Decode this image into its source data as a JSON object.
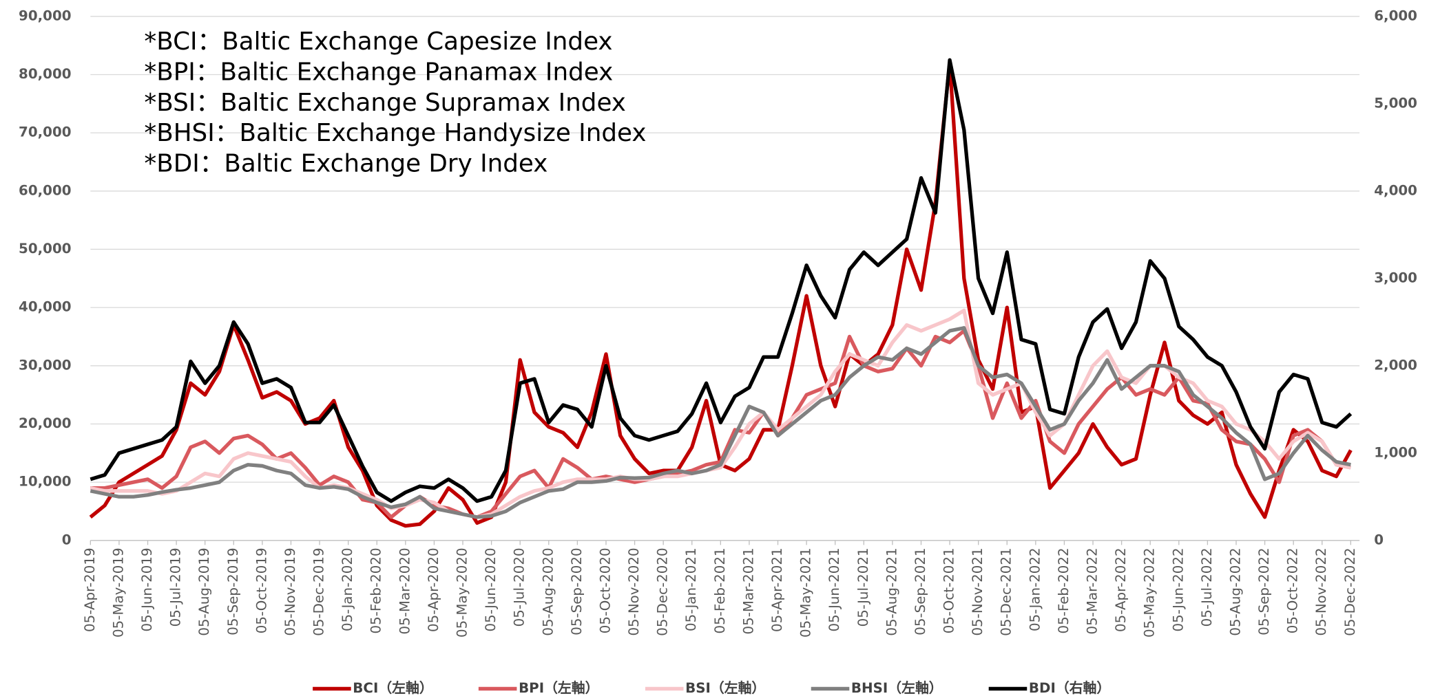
{
  "chart_data": {
    "type": "line",
    "annotations": [
      "*BCI：Baltic Exchange Capesize Index",
      "*BPI：Baltic Exchange Panamax Index",
      "*BSI：Baltic Exchange Supramax Index",
      "*BHSI：Baltic Exchange Handysize Index",
      "*BDI：Baltic Exchange Dry Index"
    ],
    "categories": [
      "05-Apr-2019",
      null,
      "05-May-2019",
      null,
      "05-Jun-2019",
      null,
      "05-Jul-2019",
      null,
      "05-Aug-2019",
      null,
      "05-Sep-2019",
      null,
      "05-Oct-2019",
      null,
      "05-Nov-2019",
      null,
      "05-Dec-2019",
      null,
      "05-Jan-2020",
      null,
      "05-Feb-2020",
      null,
      "05-Mar-2020",
      null,
      "05-Apr-2020",
      null,
      "05-May-2020",
      null,
      "05-Jun-2020",
      null,
      "05-Jul-2020",
      null,
      "05-Aug-2020",
      null,
      "05-Sep-2020",
      null,
      "05-Oct-2020",
      null,
      "05-Nov-2020",
      null,
      "05-Dec-2020",
      null,
      "05-Jan-2021",
      null,
      "05-Feb-2021",
      null,
      "05-Mar-2021",
      null,
      "05-Apr-2021",
      null,
      "05-May-2021",
      null,
      "05-Jun-2021",
      null,
      "05-Jul-2021",
      null,
      "05-Aug-2021",
      null,
      "05-Sep-2021",
      null,
      "05-Oct-2021",
      null,
      "05-Nov-2021",
      null,
      "05-Dec-2021",
      null,
      "05-Jan-2022",
      null,
      "05-Feb-2022",
      null,
      "05-Mar-2022",
      null,
      "05-Apr-2022",
      null,
      "05-May-2022",
      null,
      "05-Jun-2022",
      null,
      "05-Jul-2022",
      null,
      "05-Aug-2022",
      null,
      "05-Sep-2022",
      null,
      "05-Oct-2022",
      null,
      "05-Nov-2022",
      null,
      "05-Dec-2022"
    ],
    "series": [
      {
        "name": "BCI（左軸）",
        "color": "#c00000",
        "values": [
          4000,
          6000,
          10000,
          11500,
          13000,
          14500,
          19000,
          27000,
          25000,
          29000,
          37000,
          31000,
          24500,
          25500,
          24000,
          20000,
          21000,
          24000,
          16000,
          12000,
          6000,
          3500,
          2500,
          2800,
          5000,
          9000,
          7000,
          3000,
          4000,
          10000,
          31000,
          22000,
          19500,
          18500,
          16000,
          22000,
          32000,
          18000,
          14000,
          11500,
          12000,
          12000,
          16000,
          24000,
          13000,
          12000,
          14000,
          19000,
          19000,
          30000,
          42000,
          30000,
          23000,
          32000,
          30000,
          32000,
          37000,
          50000,
          43000,
          58000,
          82000,
          45000,
          31000,
          26000,
          40000,
          22000,
          23000,
          9000,
          12000,
          15000,
          20000,
          16000,
          13000,
          14000,
          25000,
          34000,
          24000,
          21500,
          20000,
          22000,
          13000,
          8000,
          4000,
          12000,
          19000,
          17000,
          12000,
          11000,
          15500
        ]
      },
      {
        "name": "BPI（左軸）",
        "color": "#d9595e",
        "values": [
          9000,
          9000,
          9500,
          10000,
          10500,
          9000,
          11000,
          16000,
          17000,
          15000,
          17500,
          18000,
          16500,
          14000,
          15000,
          12500,
          9500,
          11000,
          10000,
          7000,
          6500,
          4000,
          6000,
          7500,
          6000,
          5500,
          4500,
          4000,
          5000,
          8000,
          11000,
          12000,
          9000,
          14000,
          12500,
          10500,
          11000,
          10500,
          10000,
          10500,
          11000,
          11500,
          12000,
          13000,
          13500,
          19000,
          18500,
          22000,
          18000,
          21000,
          25000,
          26000,
          27000,
          35000,
          30000,
          29000,
          29500,
          33000,
          30000,
          35000,
          34000,
          36000,
          30000,
          21000,
          27000,
          21000,
          24000,
          17000,
          15000,
          20000,
          23000,
          26000,
          28000,
          25000,
          26000,
          25000,
          28000,
          24000,
          23500,
          19000,
          17000,
          16500,
          14000,
          10000,
          18000,
          19000,
          17000,
          13000,
          12500
        ]
      },
      {
        "name": "BSI（左軸）",
        "color": "#f8c6ca",
        "values": [
          9000,
          8500,
          8500,
          8500,
          8500,
          8000,
          8500,
          10000,
          11500,
          11000,
          14000,
          15000,
          14500,
          14000,
          13500,
          11000,
          9000,
          9500,
          9000,
          8000,
          7000,
          5500,
          6000,
          7000,
          6500,
          5000,
          4500,
          4000,
          4500,
          6000,
          7500,
          8500,
          9000,
          10000,
          10500,
          10500,
          10500,
          11000,
          10500,
          10500,
          11000,
          11000,
          11500,
          12000,
          12500,
          16000,
          20000,
          22000,
          19000,
          21000,
          23000,
          25000,
          29000,
          32000,
          31000,
          30000,
          34000,
          37000,
          36000,
          37000,
          38000,
          39500,
          27000,
          25000,
          26000,
          27000,
          22000,
          18000,
          20000,
          25000,
          30000,
          32500,
          28000,
          27000,
          30000,
          30000,
          28000,
          27000,
          24000,
          23000,
          20000,
          19000,
          17000,
          14000,
          17000,
          18500,
          17000,
          13000,
          12500
        ]
      },
      {
        "name": "BHSI（左軸）",
        "color": "#808080",
        "values": [
          8500,
          8000,
          7500,
          7500,
          7800,
          8300,
          8700,
          9000,
          9500,
          10000,
          12000,
          13000,
          12800,
          12000,
          11500,
          9500,
          9000,
          9200,
          8800,
          7500,
          6500,
          5700,
          6200,
          7500,
          5500,
          5000,
          4500,
          4000,
          4200,
          5000,
          6500,
          7500,
          8500,
          8800,
          10000,
          10000,
          10200,
          10800,
          10700,
          10800,
          11500,
          12000,
          11500,
          12000,
          13000,
          18000,
          23000,
          22000,
          18000,
          20000,
          22000,
          24000,
          25000,
          28000,
          30000,
          31500,
          31000,
          33000,
          32000,
          34000,
          36000,
          36500,
          30000,
          28000,
          28500,
          27000,
          23000,
          19000,
          20000,
          24000,
          27000,
          31000,
          26000,
          28000,
          30000,
          30000,
          29000,
          25000,
          23000,
          21000,
          18500,
          16500,
          10500,
          11500,
          15000,
          18000,
          15500,
          13500,
          13000
        ]
      },
      {
        "name": "BDI（右軸）",
        "color": "#000000",
        "axis": "y2",
        "values": [
          700,
          750,
          1000,
          1050,
          1100,
          1150,
          1300,
          2050,
          1800,
          2000,
          2500,
          2250,
          1800,
          1850,
          1750,
          1350,
          1350,
          1550,
          1200,
          850,
          550,
          450,
          550,
          620,
          600,
          700,
          600,
          450,
          500,
          800,
          1800,
          1850,
          1350,
          1550,
          1500,
          1300,
          2000,
          1400,
          1200,
          1150,
          1200,
          1250,
          1450,
          1800,
          1350,
          1650,
          1750,
          2100,
          2100,
          2600,
          3150,
          2800,
          2550,
          3100,
          3300,
          3150,
          3300,
          3450,
          4150,
          3750,
          5500,
          4700,
          3000,
          2600,
          3300,
          2300,
          2250,
          1500,
          1450,
          2100,
          2500,
          2650,
          2200,
          2500,
          3200,
          3000,
          2450,
          2300,
          2100,
          2000,
          1700,
          1300,
          1050,
          1700,
          1900,
          1850,
          1350,
          1300,
          1450
        ]
      }
    ],
    "ylim": [
      0,
      90000
    ],
    "yticks": [
      0,
      {
        "value": 10000,
        "label": "10,000"
      },
      {
        "value": 20000,
        "label": "20,000"
      },
      {
        "value": 30000,
        "label": "30,000"
      },
      {
        "value": 40000,
        "label": "40,000"
      },
      {
        "value": 50000,
        "label": "50,000"
      },
      {
        "value": 60000,
        "label": "60,000"
      },
      {
        "value": 70000,
        "label": "70,000"
      },
      {
        "value": 80000,
        "label": "80,000"
      },
      {
        "value": 90000,
        "label": "90,000"
      }
    ],
    "y2lim": [
      0,
      6000
    ],
    "y2ticks": [
      0,
      {
        "value": 1000,
        "label": "1,000"
      },
      {
        "value": 2000,
        "label": "2,000"
      },
      {
        "value": 3000,
        "label": "3,000"
      },
      {
        "value": 4000,
        "label": "4,000"
      },
      {
        "value": 5000,
        "label": "5,000"
      },
      {
        "value": 6000,
        "label": "6,000"
      }
    ],
    "grid": true,
    "legend": "bottom"
  }
}
